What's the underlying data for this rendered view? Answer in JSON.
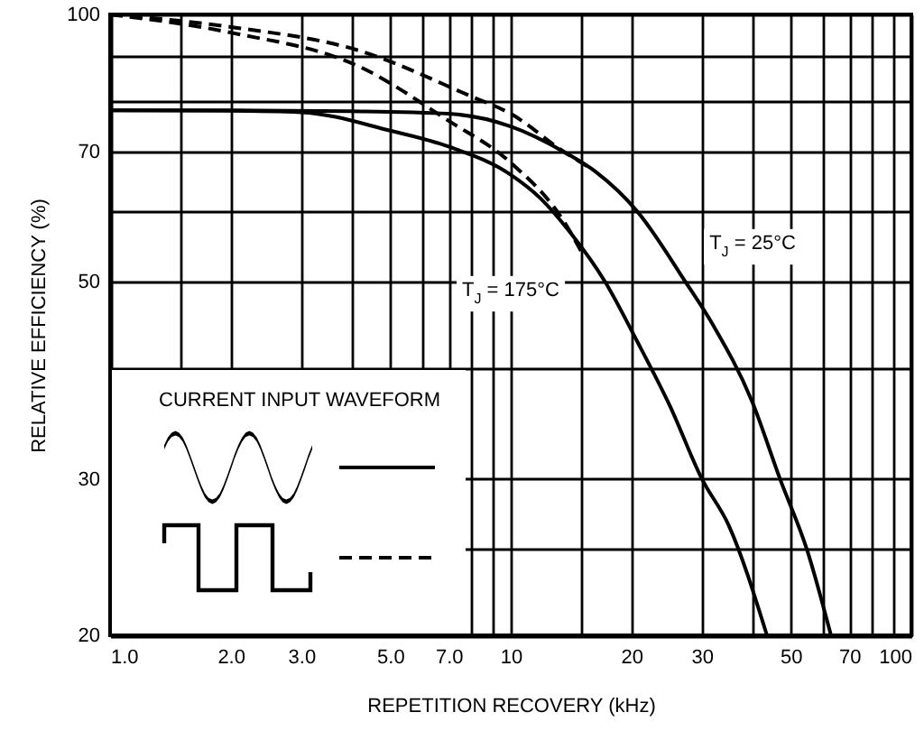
{
  "chart_data": {
    "type": "line",
    "xlabel": "REPETITION RECOVERY (kHz)",
    "ylabel": "RELATIVE EFFICIENCY (%)",
    "legend_title": "CURRENT INPUT WAVEFORM",
    "log": "xy",
    "grid": true,
    "xlim": [
      1,
      100
    ],
    "ylim": [
      20,
      100
    ],
    "xticks": [
      {
        "value": 1,
        "label": "1.0"
      },
      {
        "value": 1.5,
        "label": null
      },
      {
        "value": 2,
        "label": "2.0"
      },
      {
        "value": 3,
        "label": "3.0"
      },
      {
        "value": 4,
        "label": null
      },
      {
        "value": 5,
        "label": "5.0"
      },
      {
        "value": 6,
        "label": null
      },
      {
        "value": 7,
        "label": "7.0"
      },
      {
        "value": 8,
        "label": null
      },
      {
        "value": 9,
        "label": null
      },
      10,
      {
        "value": 15,
        "label": null
      },
      20,
      30,
      {
        "value": 40,
        "label": null
      },
      50,
      {
        "value": 60,
        "label": null
      },
      70,
      {
        "value": 80,
        "label": null
      },
      {
        "value": 90,
        "label": null
      },
      100
    ],
    "yticks": [
      20,
      {
        "value": 25,
        "label": null
      },
      30,
      {
        "value": 40,
        "label": null
      },
      50,
      {
        "value": 60,
        "label": null
      },
      70,
      {
        "value": 80,
        "label": null
      },
      {
        "value": 90,
        "label": null
      },
      100
    ],
    "series": [
      {
        "color": "#000000",
        "line_style": "solid",
        "x": [
          1,
          2,
          4,
          7,
          10,
          13.6,
          16.3,
          20.7,
          27.3,
          32,
          40,
          47,
          55,
          63
        ],
        "values": [
          78,
          78,
          77.8,
          77.3,
          74.8,
          70,
          66.5,
          60,
          50,
          44.7,
          36.7,
          30,
          24.9,
          20
        ]
      },
      {
        "color": "#000000",
        "line_style": "solid",
        "x": [
          1,
          2,
          3,
          5,
          7,
          10,
          11.9,
          14,
          17.2,
          20.6,
          25,
          30,
          35,
          43.6
        ],
        "values": [
          78,
          77.9,
          77.6,
          74,
          71,
          66,
          62,
          57,
          50,
          43,
          36.2,
          30,
          26.6,
          20
        ]
      },
      {
        "color": "#000000",
        "line_style": "dashed",
        "x": [
          1,
          2,
          4.2,
          7.9,
          10,
          13.6,
          15.5
        ],
        "values": [
          100,
          96.8,
          91,
          81,
          77.3,
          70,
          67.5
        ]
      },
      {
        "color": "#000000",
        "line_style": "dashed",
        "x": [
          1,
          2,
          4.2,
          7,
          10,
          13.6,
          15.2
        ],
        "values": [
          100,
          95.4,
          87.3,
          75.9,
          68.1,
          58.4,
          53.5
        ]
      }
    ],
    "annotations": [
      "T$_{J}$ = 25°C",
      "T$_{J}$ = 175°C"
    ]
  }
}
